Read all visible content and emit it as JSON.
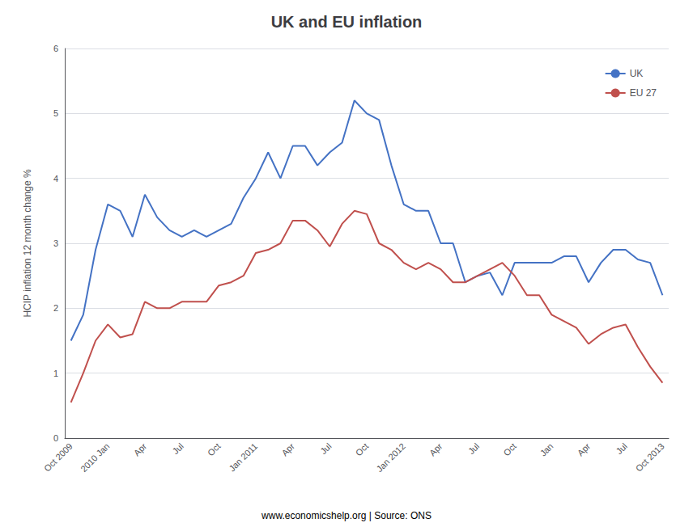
{
  "chart_data": {
    "type": "line",
    "title": "UK and EU inflation",
    "ylabel": "HCIP inflation 12 month change %",
    "annotations": [
      "www.economicshelp.org | Source: ONS"
    ],
    "categories": [
      "Oct 2009",
      null,
      null,
      "2010 Jan",
      null,
      null,
      "Apr",
      null,
      null,
      "Jul",
      null,
      null,
      "Oct",
      null,
      null,
      "Jan 2011",
      null,
      null,
      "Apr",
      null,
      null,
      "Jul",
      null,
      null,
      "Oct",
      null,
      null,
      "Jan 2012",
      null,
      null,
      "Apr",
      null,
      null,
      "Jul",
      null,
      null,
      "Oct",
      null,
      null,
      "Jan",
      null,
      null,
      "Apr",
      null,
      null,
      "Jul",
      null,
      null,
      "Oct 2013"
    ],
    "series": [
      {
        "name": "UK",
        "color": "#4472C4",
        "values": [
          1.5,
          1.9,
          2.9,
          3.6,
          3.5,
          3.1,
          3.75,
          3.4,
          3.2,
          3.1,
          3.2,
          3.1,
          3.2,
          3.3,
          3.7,
          4.0,
          4.4,
          4.0,
          4.5,
          4.5,
          4.2,
          4.4,
          4.55,
          5.2,
          5.0,
          4.9,
          4.2,
          3.6,
          3.5,
          3.5,
          3.0,
          3.0,
          2.4,
          2.5,
          2.55,
          2.2,
          2.7,
          2.7,
          2.7,
          2.7,
          2.8,
          2.8,
          2.4,
          2.7,
          2.9,
          2.9,
          2.75,
          2.7,
          2.2
        ]
      },
      {
        "name": "EU 27",
        "color": "#C0504D",
        "values": [
          0.55,
          1.0,
          1.5,
          1.75,
          1.55,
          1.6,
          2.1,
          2.0,
          2.0,
          2.1,
          2.1,
          2.1,
          2.35,
          2.4,
          2.5,
          2.85,
          2.9,
          3.0,
          3.35,
          3.35,
          3.2,
          2.95,
          3.3,
          3.5,
          3.45,
          3.0,
          2.9,
          2.7,
          2.6,
          2.7,
          2.6,
          2.4,
          2.4,
          2.5,
          2.6,
          2.7,
          2.5,
          2.2,
          2.2,
          1.9,
          1.8,
          1.7,
          1.45,
          1.6,
          1.7,
          1.75,
          1.4,
          1.1,
          0.85
        ]
      }
    ],
    "ylim": [
      0,
      6
    ],
    "yticks": [
      0,
      1,
      2,
      3,
      4,
      5,
      6
    ],
    "grid": true,
    "legend": "upper right"
  }
}
